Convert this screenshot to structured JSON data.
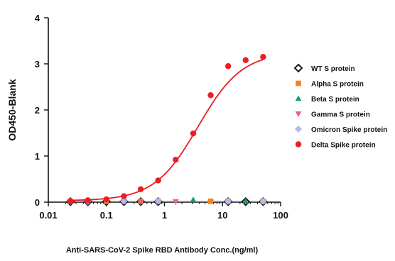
{
  "chart_data": {
    "type": "scatter",
    "xscale": "log",
    "xlim": [
      0.01,
      100
    ],
    "ylim": [
      0,
      4
    ],
    "xticks": [
      "0.01",
      "0.1",
      "1",
      "10",
      "100"
    ],
    "yticks": [
      "0",
      "1",
      "2",
      "3",
      "4"
    ],
    "xlabel": "Anti-SARS-CoV-2 Spike RBD Antibody Conc.(ng/ml)",
    "ylabel": "OD450-Blank",
    "legend_position": "right",
    "series": [
      {
        "name": "WT S protein",
        "marker": "diamond-open",
        "color": "#1a1a1a",
        "x": [
          0.024,
          0.048,
          0.1,
          0.2,
          0.39,
          0.78,
          12.5,
          25,
          50
        ],
        "y": [
          0.01,
          0.01,
          0.01,
          0.01,
          0.01,
          0.01,
          0.01,
          0.01,
          0.01
        ]
      },
      {
        "name": "Alpha S protein",
        "marker": "square",
        "color": "#f58220",
        "x": [
          0.024,
          0.1,
          0.39,
          0.78,
          6.25,
          12.5,
          50
        ],
        "y": [
          0.02,
          0.02,
          0.02,
          0.02,
          0.02,
          0.02,
          0.02
        ]
      },
      {
        "name": "Beta S protein",
        "marker": "triangle-up",
        "color": "#1e9a6a",
        "x": [
          0.024,
          0.2,
          0.78,
          3.125,
          12.5,
          25
        ],
        "y": [
          0.02,
          0.02,
          0.02,
          0.05,
          0.02,
          0.02
        ]
      },
      {
        "name": "Gamma S protein",
        "marker": "triangle-down",
        "color": "#e8608e",
        "x": [
          0.024,
          0.1,
          0.39,
          1.56,
          12.5,
          50
        ],
        "y": [
          0.01,
          0.01,
          0.01,
          0.01,
          0.01,
          0.01
        ]
      },
      {
        "name": "Omicron Spike protein",
        "marker": "diamond",
        "color": "#b8b8ee",
        "x": [
          0.024,
          0.048,
          0.2,
          0.78,
          12.5,
          50
        ],
        "y": [
          0.02,
          0.02,
          0.02,
          0.02,
          0.02,
          0.02
        ]
      },
      {
        "name": "Delta Spike protein",
        "marker": "circle",
        "color": "#ee1c24",
        "fit_curve": true,
        "x": [
          0.024,
          0.048,
          0.1,
          0.2,
          0.39,
          0.78,
          1.56,
          3.125,
          6.25,
          12.5,
          25,
          50
        ],
        "y": [
          0.02,
          0.04,
          0.06,
          0.13,
          0.28,
          0.47,
          0.92,
          1.49,
          2.32,
          2.95,
          3.08,
          3.15
        ]
      }
    ]
  }
}
